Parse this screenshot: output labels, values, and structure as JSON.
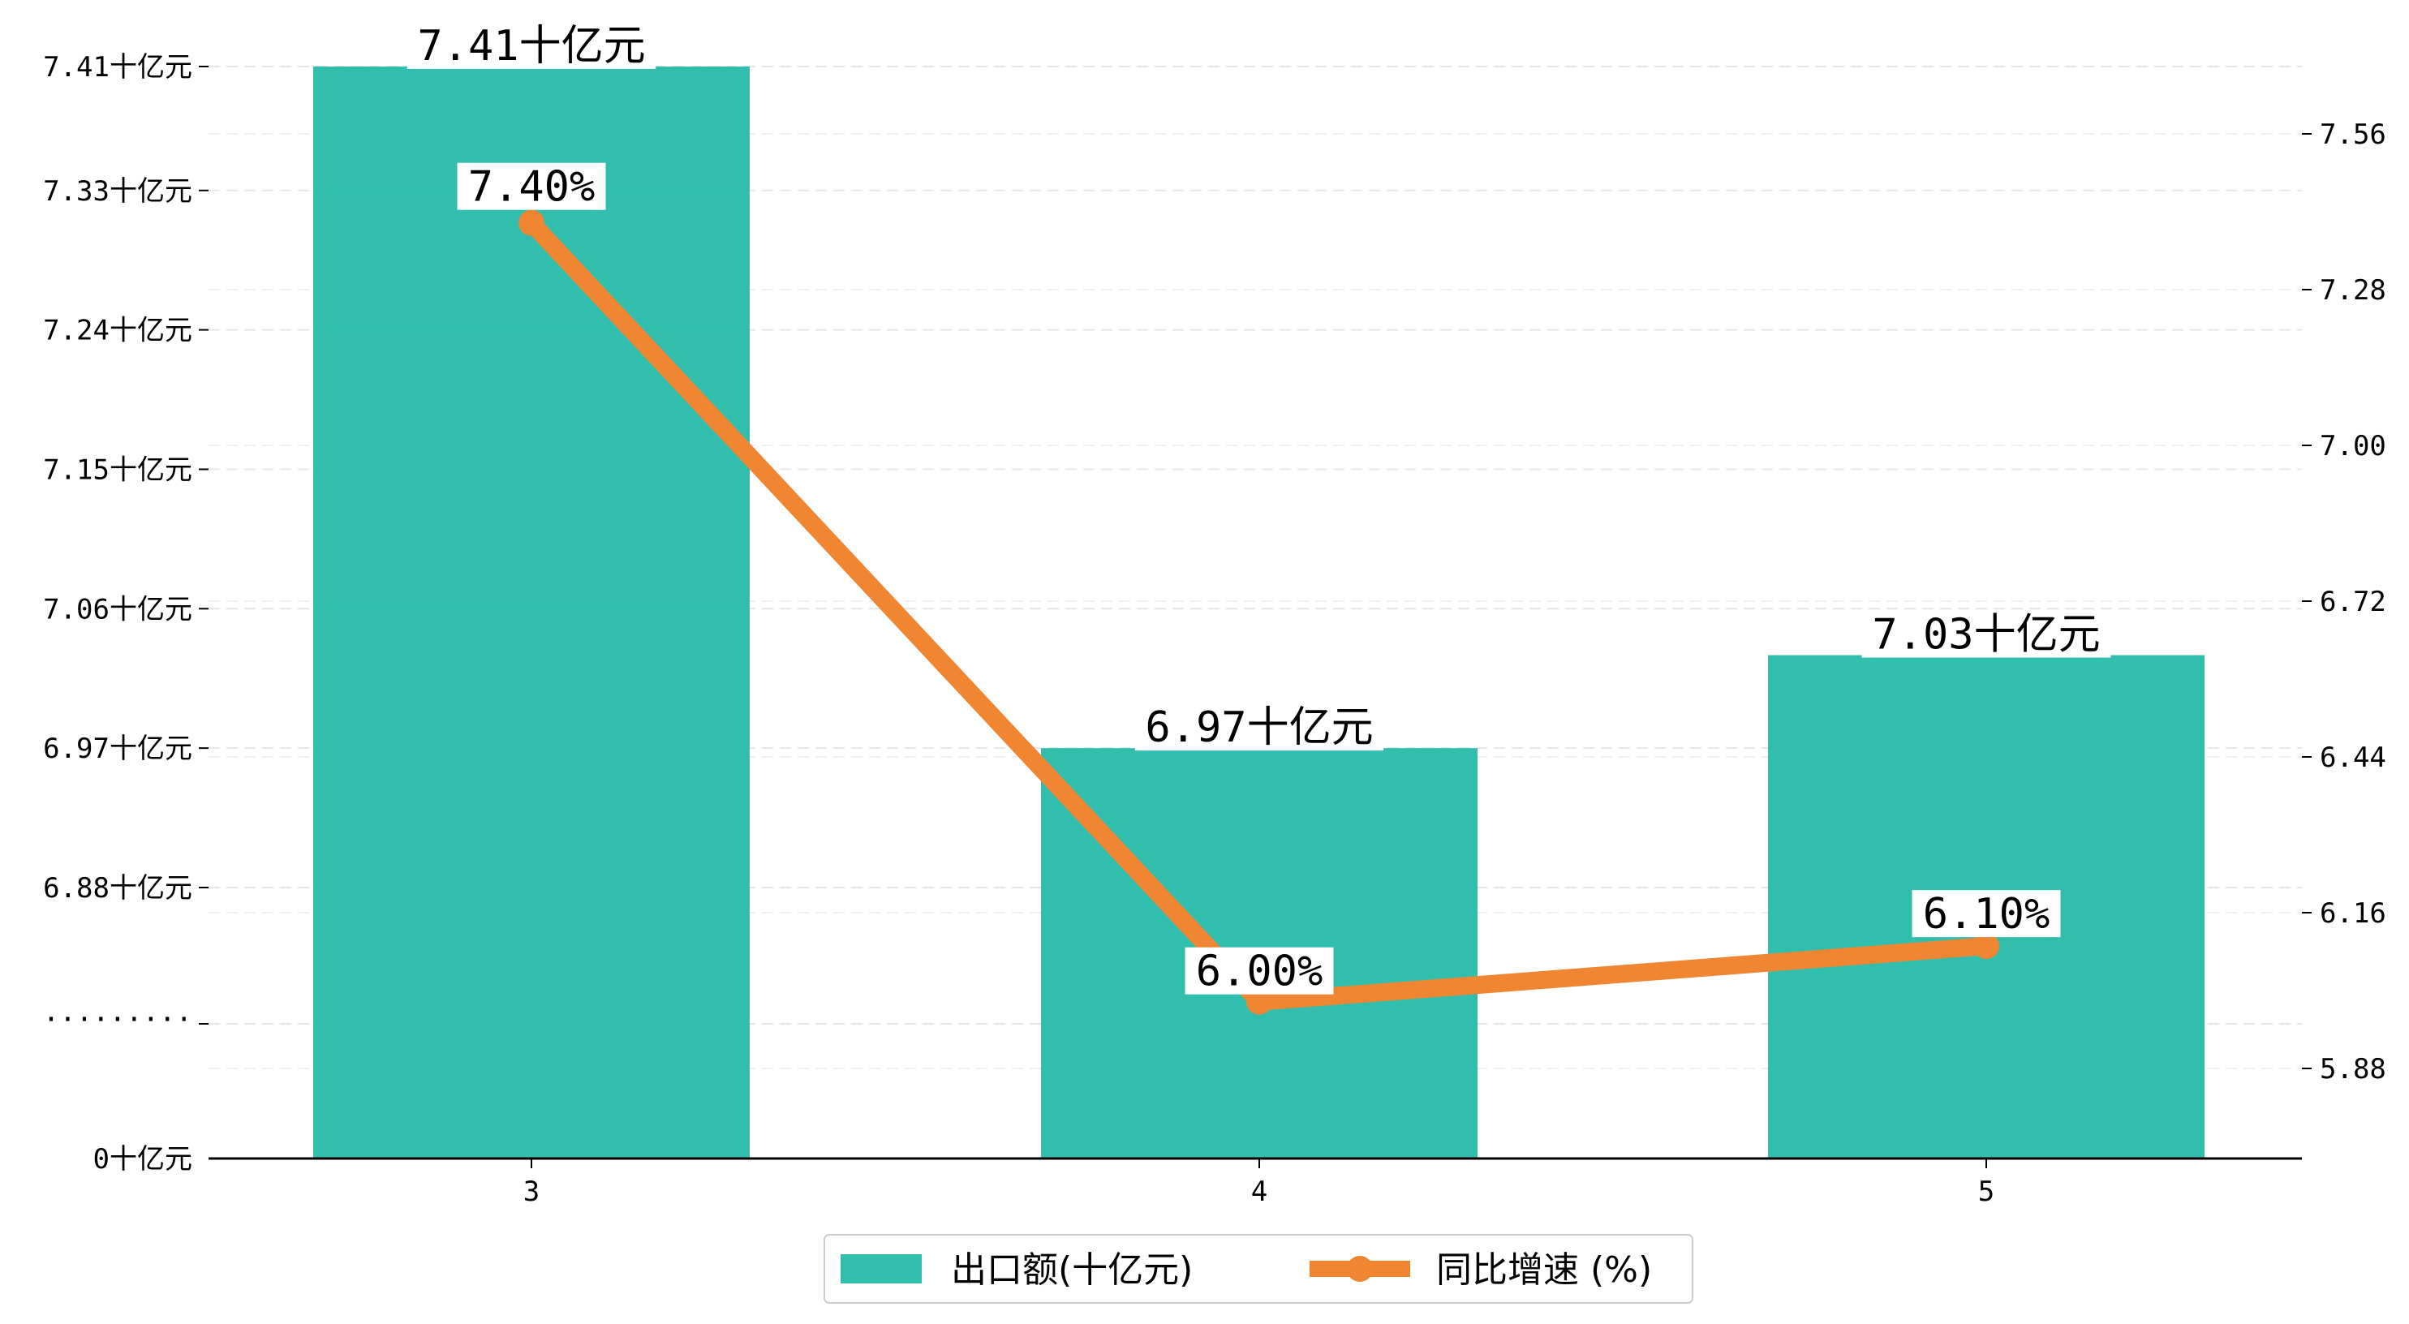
{
  "chart_data": {
    "type": "bar+line",
    "categories": [
      "3",
      "4",
      "5"
    ],
    "series": [
      {
        "name": "出口额(十亿元)",
        "type": "bar",
        "axis": "left",
        "values": [
          7.41,
          6.97,
          7.03
        ],
        "labels": [
          "7.41十亿元",
          "6.97十亿元",
          "7.03十亿元"
        ],
        "color": "#1FB8A6"
      },
      {
        "name": "同比增速 (%)",
        "type": "line",
        "axis": "right",
        "values": [
          7.4,
          6.0,
          6.1
        ],
        "labels": [
          "7.40%",
          "6.00%",
          "6.10%"
        ],
        "color": "#F08532"
      }
    ],
    "left_axis": {
      "broken": true,
      "break_label": "·········",
      "ticks": [
        {
          "value": 0,
          "label": "0十亿元"
        },
        {
          "value": 6.88,
          "label": "6.88十亿元"
        },
        {
          "value": 6.97,
          "label": "6.97十亿元"
        },
        {
          "value": 7.06,
          "label": "7.06十亿元"
        },
        {
          "value": 7.15,
          "label": "7.15十亿元"
        },
        {
          "value": 7.24,
          "label": "7.24十亿元"
        },
        {
          "value": 7.33,
          "label": "7.33十亿元"
        },
        {
          "value": 7.41,
          "label": "7.41十亿元"
        }
      ]
    },
    "right_axis": {
      "ticks": [
        5.88,
        6.16,
        6.44,
        6.72,
        7.0,
        7.28,
        7.56
      ],
      "tick_labels": [
        "5.88",
        "6.16",
        "6.44",
        "6.72",
        "7.00",
        "7.28",
        "7.56"
      ],
      "range": [
        5.72,
        7.68
      ]
    },
    "grid": true,
    "grid_style": "dashed",
    "legend_position": "bottom-center",
    "title": "",
    "xlabel": "",
    "ylabel": ""
  }
}
